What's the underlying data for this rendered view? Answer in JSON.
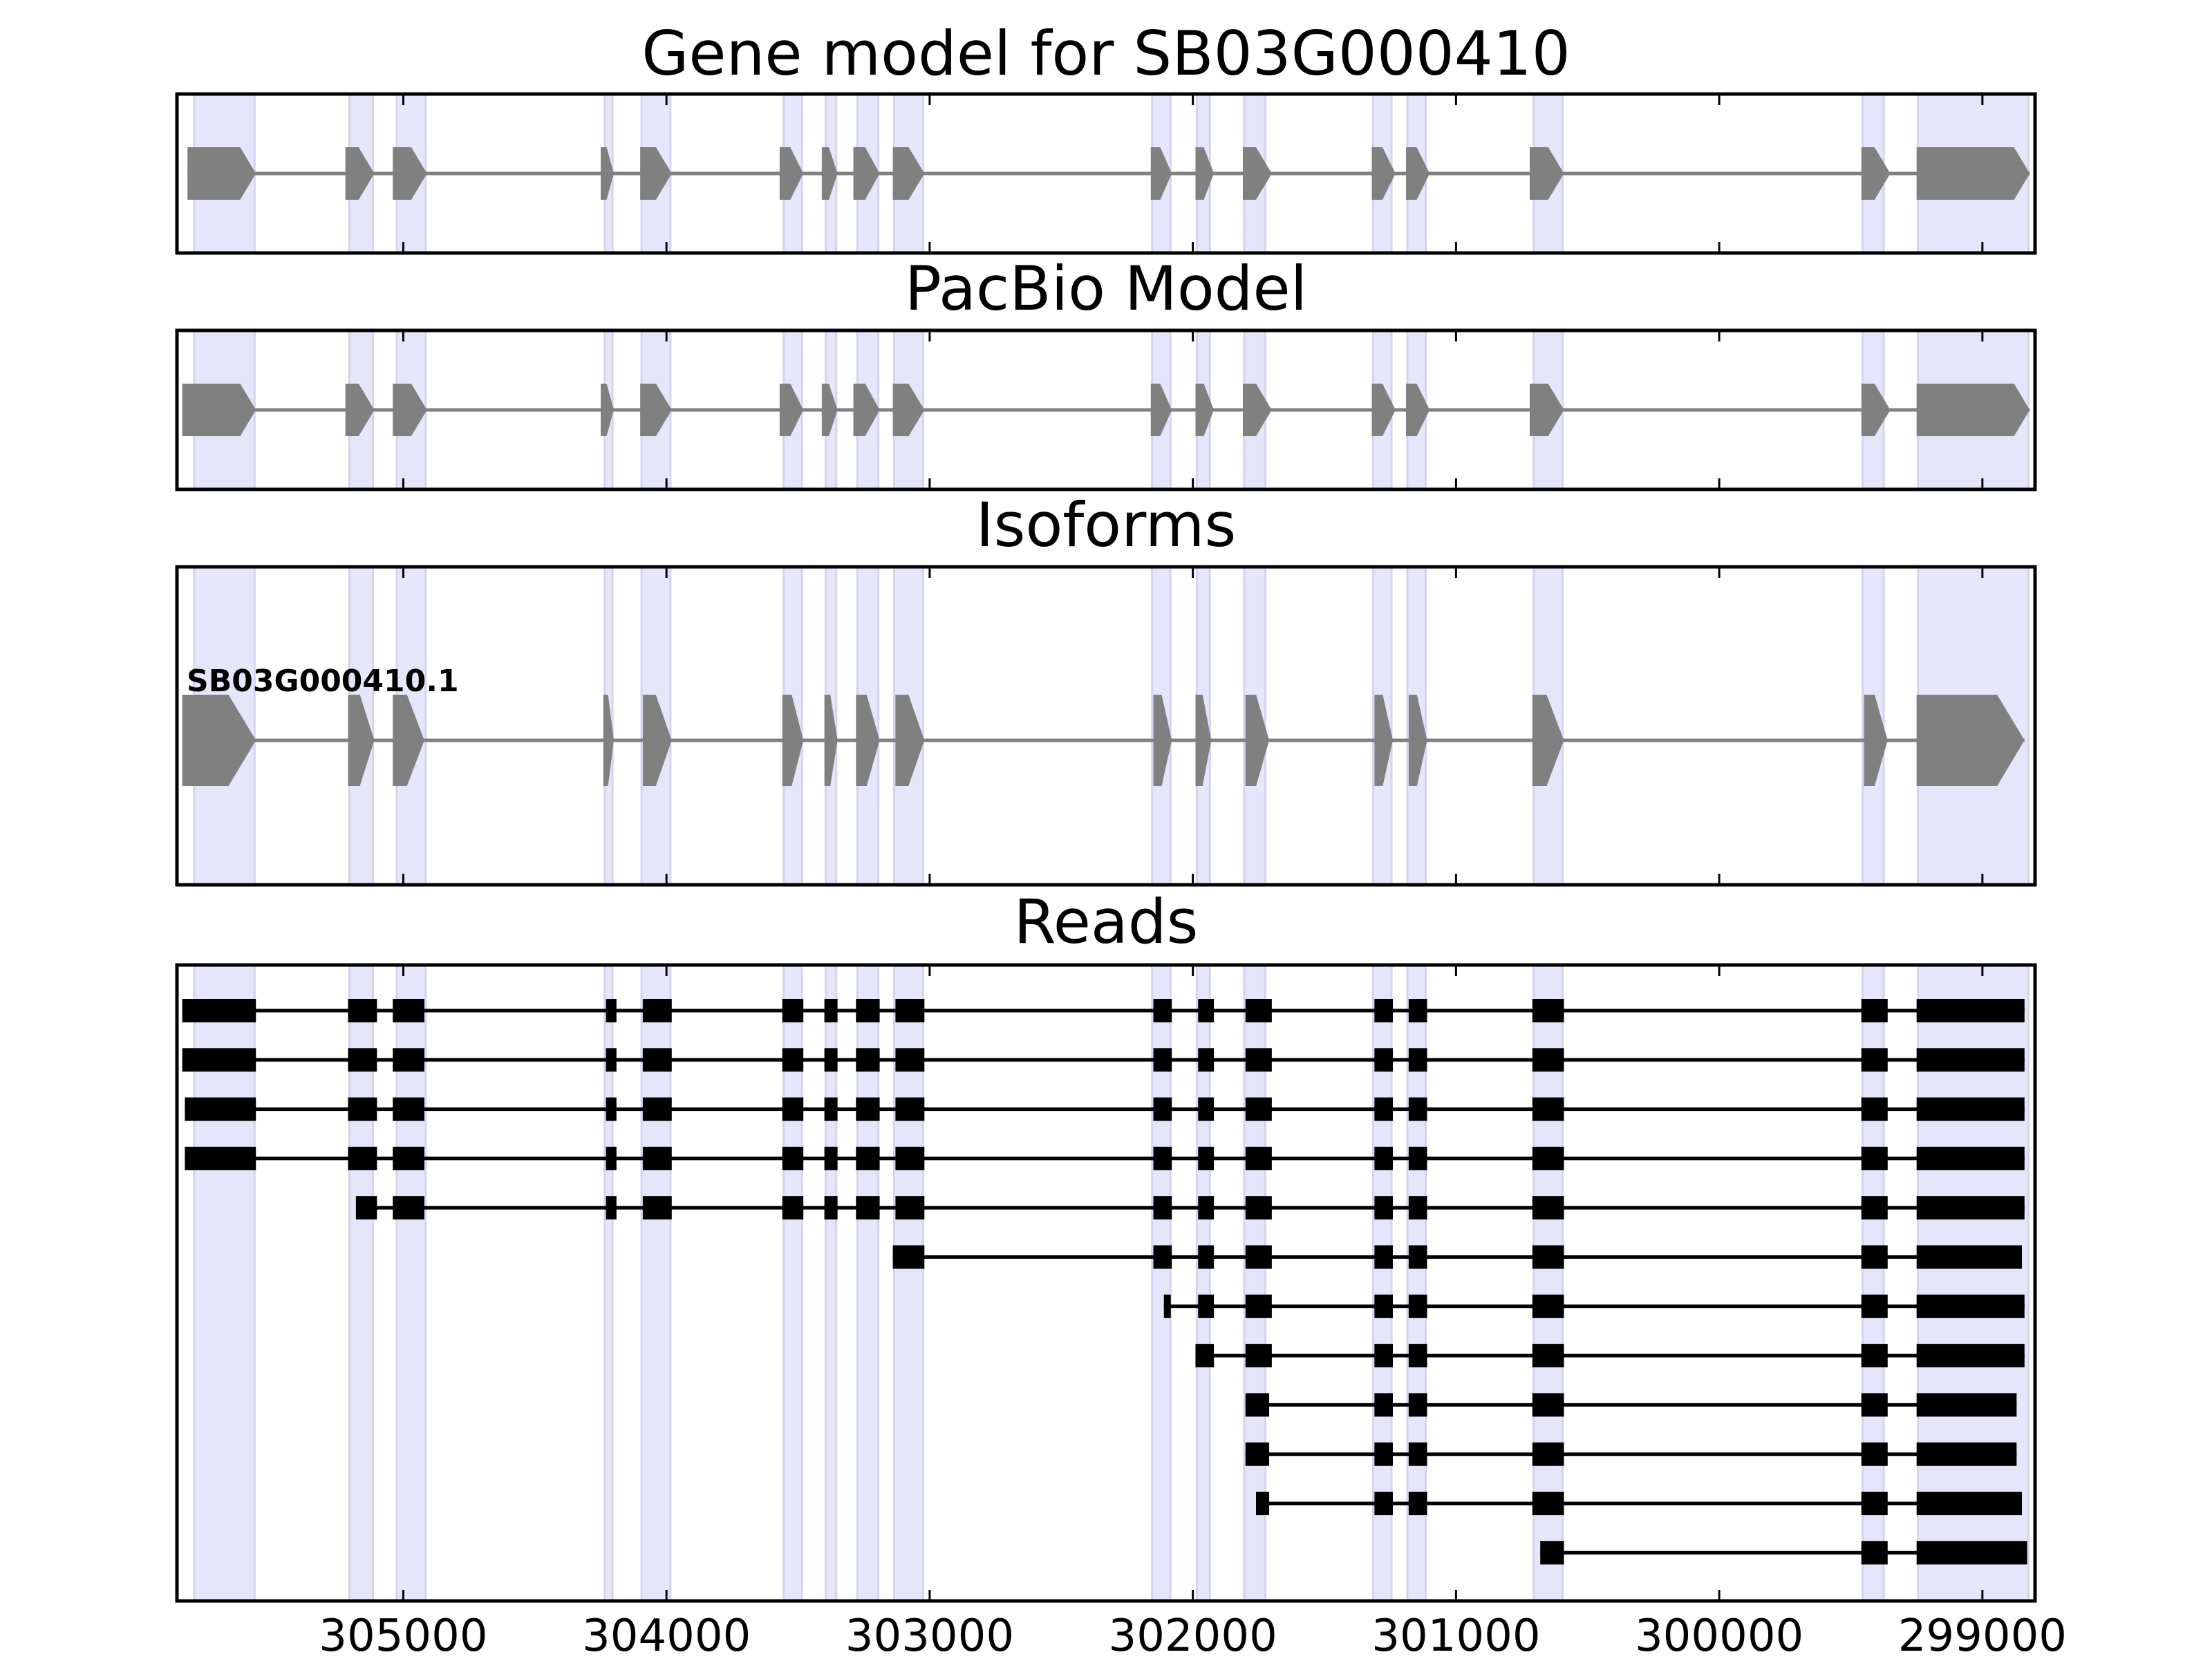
{
  "chart_data": {
    "type": "gene-model",
    "xaxis": {
      "reversed": true,
      "ticks": [
        305000,
        304000,
        303000,
        302000,
        301000,
        300000,
        299000
      ],
      "tick_labels": [
        "305000",
        "304000",
        "303000",
        "302000",
        "301000",
        "300000",
        "299000"
      ]
    },
    "highlight_color": "#e6e6fa",
    "exon_color": "#808080",
    "read_color": "#000000",
    "highlight_regions": [
      [
        305795,
        305565
      ],
      [
        305205,
        305115
      ],
      [
        305025,
        304915
      ],
      [
        304235,
        304205
      ],
      [
        304095,
        303985
      ],
      [
        303555,
        303485
      ],
      [
        303395,
        303355
      ],
      [
        303275,
        303195
      ],
      [
        303135,
        303025
      ],
      [
        302155,
        302085
      ],
      [
        301985,
        301935
      ],
      [
        301805,
        301725
      ],
      [
        301315,
        301245
      ],
      [
        301185,
        301115
      ],
      [
        300705,
        300595
      ],
      [
        299455,
        299375
      ],
      [
        299245,
        298825
      ]
    ],
    "panels": [
      {
        "title": "Gene model for SB03G000410",
        "isoforms": [
          {
            "label": "",
            "exons": [
              [
                305820,
                305560
              ],
              [
                305220,
                305110
              ],
              [
                305040,
                304910
              ],
              [
                304250,
                304200
              ],
              [
                304100,
                303980
              ],
              [
                303570,
                303480
              ],
              [
                303410,
                303350
              ],
              [
                303290,
                303190
              ],
              [
                303140,
                303020
              ],
              [
                302160,
                302080
              ],
              [
                301990,
                301920
              ],
              [
                301810,
                301700
              ],
              [
                301320,
                301230
              ],
              [
                301190,
                301100
              ],
              [
                300720,
                300590
              ],
              [
                299460,
                299350
              ],
              [
                299250,
                298820
              ]
            ]
          }
        ]
      },
      {
        "title": "PacBio Model",
        "isoforms": [
          {
            "label": "",
            "exons": [
              [
                305840,
                305560
              ],
              [
                305220,
                305110
              ],
              [
                305040,
                304910
              ],
              [
                304250,
                304200
              ],
              [
                304100,
                303980
              ],
              [
                303570,
                303480
              ],
              [
                303410,
                303350
              ],
              [
                303290,
                303190
              ],
              [
                303140,
                303020
              ],
              [
                302160,
                302080
              ],
              [
                301990,
                301920
              ],
              [
                301810,
                301700
              ],
              [
                301320,
                301230
              ],
              [
                301190,
                301100
              ],
              [
                300720,
                300590
              ],
              [
                299460,
                299350
              ],
              [
                299250,
                298820
              ]
            ]
          }
        ]
      },
      {
        "title": "Isoforms",
        "isoforms": [
          {
            "label": "SB03G000410.1",
            "exons": [
              [
                305840,
                305560
              ],
              [
                305210,
                305110
              ],
              [
                305040,
                304920
              ],
              [
                304240,
                304200
              ],
              [
                304090,
                303980
              ],
              [
                303560,
                303480
              ],
              [
                303400,
                303350
              ],
              [
                303280,
                303190
              ],
              [
                303130,
                303020
              ],
              [
                302150,
                302080
              ],
              [
                301990,
                301930
              ],
              [
                301800,
                301710
              ],
              [
                301310,
                301240
              ],
              [
                301180,
                301110
              ],
              [
                300710,
                300590
              ],
              [
                299450,
                299360
              ],
              [
                299250,
                298840
              ]
            ]
          }
        ]
      },
      {
        "title": "Reads",
        "reads": [
          [
            [
              305840,
              305560
            ],
            [
              305210,
              305100
            ],
            [
              305040,
              304920
            ],
            [
              304230,
              304190
            ],
            [
              304090,
              303980
            ],
            [
              303560,
              303480
            ],
            [
              303400,
              303350
            ],
            [
              303280,
              303190
            ],
            [
              303130,
              303020
            ],
            [
              302150,
              302080
            ],
            [
              301980,
              301920
            ],
            [
              301800,
              301700
            ],
            [
              301310,
              301240
            ],
            [
              301180,
              301110
            ],
            [
              300710,
              300590
            ],
            [
              299460,
              299360
            ],
            [
              299250,
              298840
            ]
          ],
          [
            [
              305840,
              305560
            ],
            [
              305210,
              305100
            ],
            [
              305040,
              304920
            ],
            [
              304230,
              304190
            ],
            [
              304090,
              303980
            ],
            [
              303560,
              303480
            ],
            [
              303400,
              303350
            ],
            [
              303280,
              303190
            ],
            [
              303130,
              303020
            ],
            [
              302150,
              302080
            ],
            [
              301980,
              301920
            ],
            [
              301800,
              301700
            ],
            [
              301310,
              301240
            ],
            [
              301180,
              301110
            ],
            [
              300710,
              300590
            ],
            [
              299460,
              299360
            ],
            [
              299250,
              298840
            ]
          ],
          [
            [
              305830,
              305560
            ],
            [
              305210,
              305100
            ],
            [
              305040,
              304920
            ],
            [
              304230,
              304190
            ],
            [
              304090,
              303980
            ],
            [
              303560,
              303480
            ],
            [
              303400,
              303350
            ],
            [
              303280,
              303190
            ],
            [
              303130,
              303020
            ],
            [
              302150,
              302080
            ],
            [
              301980,
              301920
            ],
            [
              301800,
              301700
            ],
            [
              301310,
              301240
            ],
            [
              301180,
              301110
            ],
            [
              300710,
              300590
            ],
            [
              299460,
              299360
            ],
            [
              299250,
              298840
            ]
          ],
          [
            [
              305830,
              305560
            ],
            [
              305210,
              305100
            ],
            [
              305040,
              304920
            ],
            [
              304230,
              304190
            ],
            [
              304090,
              303980
            ],
            [
              303560,
              303480
            ],
            [
              303400,
              303350
            ],
            [
              303280,
              303190
            ],
            [
              303130,
              303020
            ],
            [
              302150,
              302080
            ],
            [
              301980,
              301920
            ],
            [
              301800,
              301700
            ],
            [
              301310,
              301240
            ],
            [
              301180,
              301110
            ],
            [
              300710,
              300590
            ],
            [
              299460,
              299360
            ],
            [
              299250,
              298840
            ]
          ],
          [
            [
              305180,
              305100
            ],
            [
              305040,
              304920
            ],
            [
              304230,
              304190
            ],
            [
              304090,
              303980
            ],
            [
              303560,
              303480
            ],
            [
              303400,
              303350
            ],
            [
              303280,
              303190
            ],
            [
              303130,
              303020
            ],
            [
              302150,
              302080
            ],
            [
              301980,
              301920
            ],
            [
              301800,
              301700
            ],
            [
              301310,
              301240
            ],
            [
              301180,
              301110
            ],
            [
              300710,
              300590
            ],
            [
              299460,
              299360
            ],
            [
              299250,
              298840
            ]
          ],
          [
            [
              303140,
              303020
            ],
            [
              302150,
              302080
            ],
            [
              301980,
              301920
            ],
            [
              301800,
              301700
            ],
            [
              301310,
              301240
            ],
            [
              301180,
              301110
            ],
            [
              300710,
              300590
            ],
            [
              299460,
              299360
            ],
            [
              299250,
              298850
            ]
          ],
          [
            [
              302110,
              302090
            ],
            [
              301980,
              301920
            ],
            [
              301800,
              301700
            ],
            [
              301310,
              301240
            ],
            [
              301180,
              301110
            ],
            [
              300710,
              300590
            ],
            [
              299460,
              299360
            ],
            [
              299250,
              298840
            ]
          ],
          [
            [
              301990,
              301920
            ],
            [
              301800,
              301700
            ],
            [
              301310,
              301240
            ],
            [
              301180,
              301110
            ],
            [
              300710,
              300590
            ],
            [
              299460,
              299360
            ],
            [
              299250,
              298840
            ]
          ],
          [
            [
              301800,
              301710
            ],
            [
              301310,
              301240
            ],
            [
              301180,
              301110
            ],
            [
              300710,
              300590
            ],
            [
              299460,
              299360
            ],
            [
              299250,
              298870
            ]
          ],
          [
            [
              301800,
              301710
            ],
            [
              301310,
              301240
            ],
            [
              301180,
              301110
            ],
            [
              300710,
              300590
            ],
            [
              299460,
              299360
            ],
            [
              299250,
              298870
            ]
          ],
          [
            [
              301760,
              301710
            ],
            [
              301310,
              301240
            ],
            [
              301180,
              301110
            ],
            [
              300710,
              300590
            ],
            [
              299460,
              299360
            ],
            [
              299250,
              298850
            ]
          ],
          [
            [
              300680,
              300590
            ],
            [
              299460,
              299360
            ],
            [
              299250,
              298830
            ]
          ]
        ]
      }
    ]
  }
}
